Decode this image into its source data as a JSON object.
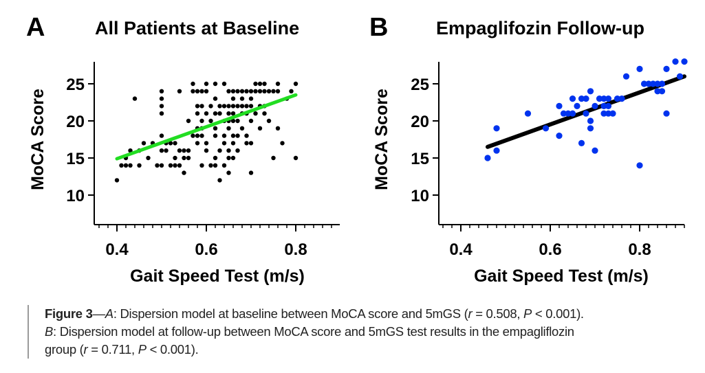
{
  "chart_data": [
    {
      "type": "scatter",
      "panel_letter": "A",
      "title": "All Patients at Baseline",
      "xlabel": "Gait Speed Test (m/s)",
      "ylabel": "MoCA Score",
      "xlim": [
        0.35,
        0.9
      ],
      "ylim": [
        6,
        28
      ],
      "xticks": [
        0.4,
        0.6,
        0.8
      ],
      "xtick_labels": [
        "0.4",
        "0.6",
        "0.8"
      ],
      "x_minor_step": 0.02,
      "yticks": [
        10,
        15,
        20,
        25
      ],
      "ytick_labels": [
        "10",
        "15",
        "20",
        "25"
      ],
      "grid": false,
      "point_color": "#000000",
      "fit_color": "#22dd22",
      "fit_line": {
        "x": [
          0.4,
          0.8
        ],
        "y": [
          14.9,
          23.5
        ]
      },
      "points": [
        [
          0.4,
          12
        ],
        [
          0.41,
          14
        ],
        [
          0.42,
          14
        ],
        [
          0.43,
          14
        ],
        [
          0.42,
          15
        ],
        [
          0.43,
          16
        ],
        [
          0.44,
          23
        ],
        [
          0.45,
          16
        ],
        [
          0.45,
          14
        ],
        [
          0.46,
          17
        ],
        [
          0.47,
          15
        ],
        [
          0.48,
          17
        ],
        [
          0.49,
          14
        ],
        [
          0.5,
          14
        ],
        [
          0.5,
          16
        ],
        [
          0.5,
          18
        ],
        [
          0.5,
          21
        ],
        [
          0.5,
          22
        ],
        [
          0.5,
          23
        ],
        [
          0.5,
          24
        ],
        [
          0.51,
          16
        ],
        [
          0.51,
          17
        ],
        [
          0.52,
          17
        ],
        [
          0.52,
          14
        ],
        [
          0.53,
          15
        ],
        [
          0.53,
          14
        ],
        [
          0.53,
          17
        ],
        [
          0.54,
          14
        ],
        [
          0.54,
          16
        ],
        [
          0.54,
          24
        ],
        [
          0.55,
          13
        ],
        [
          0.55,
          15
        ],
        [
          0.55,
          16
        ],
        [
          0.56,
          16
        ],
        [
          0.56,
          15
        ],
        [
          0.56,
          20
        ],
        [
          0.57,
          25
        ],
        [
          0.57,
          24
        ],
        [
          0.57,
          18
        ],
        [
          0.58,
          24
        ],
        [
          0.58,
          22
        ],
        [
          0.58,
          21
        ],
        [
          0.58,
          19
        ],
        [
          0.58,
          17
        ],
        [
          0.58,
          18
        ],
        [
          0.59,
          24
        ],
        [
          0.59,
          22
        ],
        [
          0.59,
          20
        ],
        [
          0.59,
          19
        ],
        [
          0.59,
          18
        ],
        [
          0.59,
          14
        ],
        [
          0.6,
          25
        ],
        [
          0.6,
          24
        ],
        [
          0.6,
          21
        ],
        [
          0.6,
          17
        ],
        [
          0.6,
          16
        ],
        [
          0.61,
          22
        ],
        [
          0.61,
          20
        ],
        [
          0.61,
          14
        ],
        [
          0.62,
          25
        ],
        [
          0.62,
          23
        ],
        [
          0.62,
          21
        ],
        [
          0.62,
          19
        ],
        [
          0.62,
          18
        ],
        [
          0.62,
          15
        ],
        [
          0.62,
          14
        ],
        [
          0.63,
          22
        ],
        [
          0.63,
          21
        ],
        [
          0.63,
          16
        ],
        [
          0.63,
          12
        ],
        [
          0.64,
          25
        ],
        [
          0.64,
          22
        ],
        [
          0.64,
          20
        ],
        [
          0.64,
          18
        ],
        [
          0.64,
          17
        ],
        [
          0.64,
          14
        ],
        [
          0.65,
          24
        ],
        [
          0.65,
          22
        ],
        [
          0.65,
          21
        ],
        [
          0.65,
          20
        ],
        [
          0.65,
          19
        ],
        [
          0.65,
          16
        ],
        [
          0.65,
          15
        ],
        [
          0.65,
          13
        ],
        [
          0.66,
          24
        ],
        [
          0.66,
          23
        ],
        [
          0.66,
          22
        ],
        [
          0.66,
          21
        ],
        [
          0.66,
          20
        ],
        [
          0.66,
          18
        ],
        [
          0.66,
          17
        ],
        [
          0.66,
          15
        ],
        [
          0.67,
          24
        ],
        [
          0.67,
          22
        ],
        [
          0.67,
          20
        ],
        [
          0.67,
          18
        ],
        [
          0.67,
          16
        ],
        [
          0.68,
          24
        ],
        [
          0.68,
          23
        ],
        [
          0.68,
          22
        ],
        [
          0.68,
          21
        ],
        [
          0.68,
          19
        ],
        [
          0.69,
          24
        ],
        [
          0.69,
          22
        ],
        [
          0.69,
          21
        ],
        [
          0.69,
          18
        ],
        [
          0.69,
          17
        ],
        [
          0.7,
          24
        ],
        [
          0.7,
          23
        ],
        [
          0.7,
          22
        ],
        [
          0.7,
          20
        ],
        [
          0.7,
          17
        ],
        [
          0.7,
          13
        ],
        [
          0.71,
          25
        ],
        [
          0.71,
          24
        ],
        [
          0.71,
          21
        ],
        [
          0.72,
          25
        ],
        [
          0.72,
          24
        ],
        [
          0.72,
          22
        ],
        [
          0.72,
          19
        ],
        [
          0.73,
          25
        ],
        [
          0.73,
          24
        ],
        [
          0.73,
          22
        ],
        [
          0.73,
          21
        ],
        [
          0.74,
          24
        ],
        [
          0.74,
          20
        ],
        [
          0.75,
          24
        ],
        [
          0.75,
          15
        ],
        [
          0.76,
          25
        ],
        [
          0.76,
          24
        ],
        [
          0.76,
          19
        ],
        [
          0.77,
          17
        ],
        [
          0.78,
          23
        ],
        [
          0.79,
          24
        ],
        [
          0.8,
          25
        ],
        [
          0.8,
          15
        ]
      ]
    },
    {
      "type": "scatter",
      "panel_letter": "B",
      "title": "Empaglifozin Follow-up",
      "xlabel": "Gait Speed Test (m/s)",
      "ylabel": "MoCA Score",
      "xlim": [
        0.35,
        0.9
      ],
      "ylim": [
        6,
        28
      ],
      "xticks": [
        0.4,
        0.6,
        0.8
      ],
      "xtick_labels": [
        "0.4",
        "0.6",
        "0.8"
      ],
      "x_minor_step": 0.02,
      "yticks": [
        10,
        15,
        20,
        25
      ],
      "ytick_labels": [
        "10",
        "15",
        "20",
        "25"
      ],
      "grid": false,
      "point_color": "#0033ee",
      "fit_color": "#000000",
      "fit_line": {
        "x": [
          0.46,
          0.9
        ],
        "y": [
          16.5,
          26
        ]
      },
      "points": [
        [
          0.46,
          15
        ],
        [
          0.48,
          16
        ],
        [
          0.48,
          19
        ],
        [
          0.55,
          21
        ],
        [
          0.59,
          19
        ],
        [
          0.62,
          18
        ],
        [
          0.62,
          22
        ],
        [
          0.63,
          21
        ],
        [
          0.64,
          21
        ],
        [
          0.65,
          21
        ],
        [
          0.65,
          23
        ],
        [
          0.66,
          22
        ],
        [
          0.67,
          23
        ],
        [
          0.67,
          17
        ],
        [
          0.68,
          23
        ],
        [
          0.68,
          21
        ],
        [
          0.69,
          24
        ],
        [
          0.69,
          20
        ],
        [
          0.69,
          19
        ],
        [
          0.7,
          22
        ],
        [
          0.7,
          16
        ],
        [
          0.71,
          23
        ],
        [
          0.72,
          22
        ],
        [
          0.72,
          21
        ],
        [
          0.72,
          23
        ],
        [
          0.73,
          23
        ],
        [
          0.73,
          22
        ],
        [
          0.73,
          21
        ],
        [
          0.74,
          21
        ],
        [
          0.75,
          23
        ],
        [
          0.76,
          23
        ],
        [
          0.77,
          26
        ],
        [
          0.8,
          14
        ],
        [
          0.8,
          27
        ],
        [
          0.81,
          25
        ],
        [
          0.82,
          25
        ],
        [
          0.83,
          25
        ],
        [
          0.84,
          25
        ],
        [
          0.84,
          24
        ],
        [
          0.85,
          25
        ],
        [
          0.85,
          24
        ],
        [
          0.86,
          21
        ],
        [
          0.86,
          27
        ],
        [
          0.88,
          28
        ],
        [
          0.89,
          26
        ],
        [
          0.9,
          28
        ]
      ]
    }
  ],
  "caption": {
    "label": "Figure 3",
    "dash": "—",
    "line1_a": "A",
    "line1_text": ": Dispersion model at baseline between MoCA score and 5mGS (",
    "r1_sym": "r",
    "r1_val": " = 0.508, ",
    "p1_sym": "P",
    "p1_val": " < 0.001).",
    "line2_b": "B",
    "line2_text": ": Dispersion model at follow-up between MoCA score and 5mGS test results in the empagliflozin",
    "line3_text": "group (",
    "r2_sym": "r",
    "r2_val": " = 0.711, ",
    "p2_sym": "P",
    "p2_val": " < 0.001)."
  }
}
